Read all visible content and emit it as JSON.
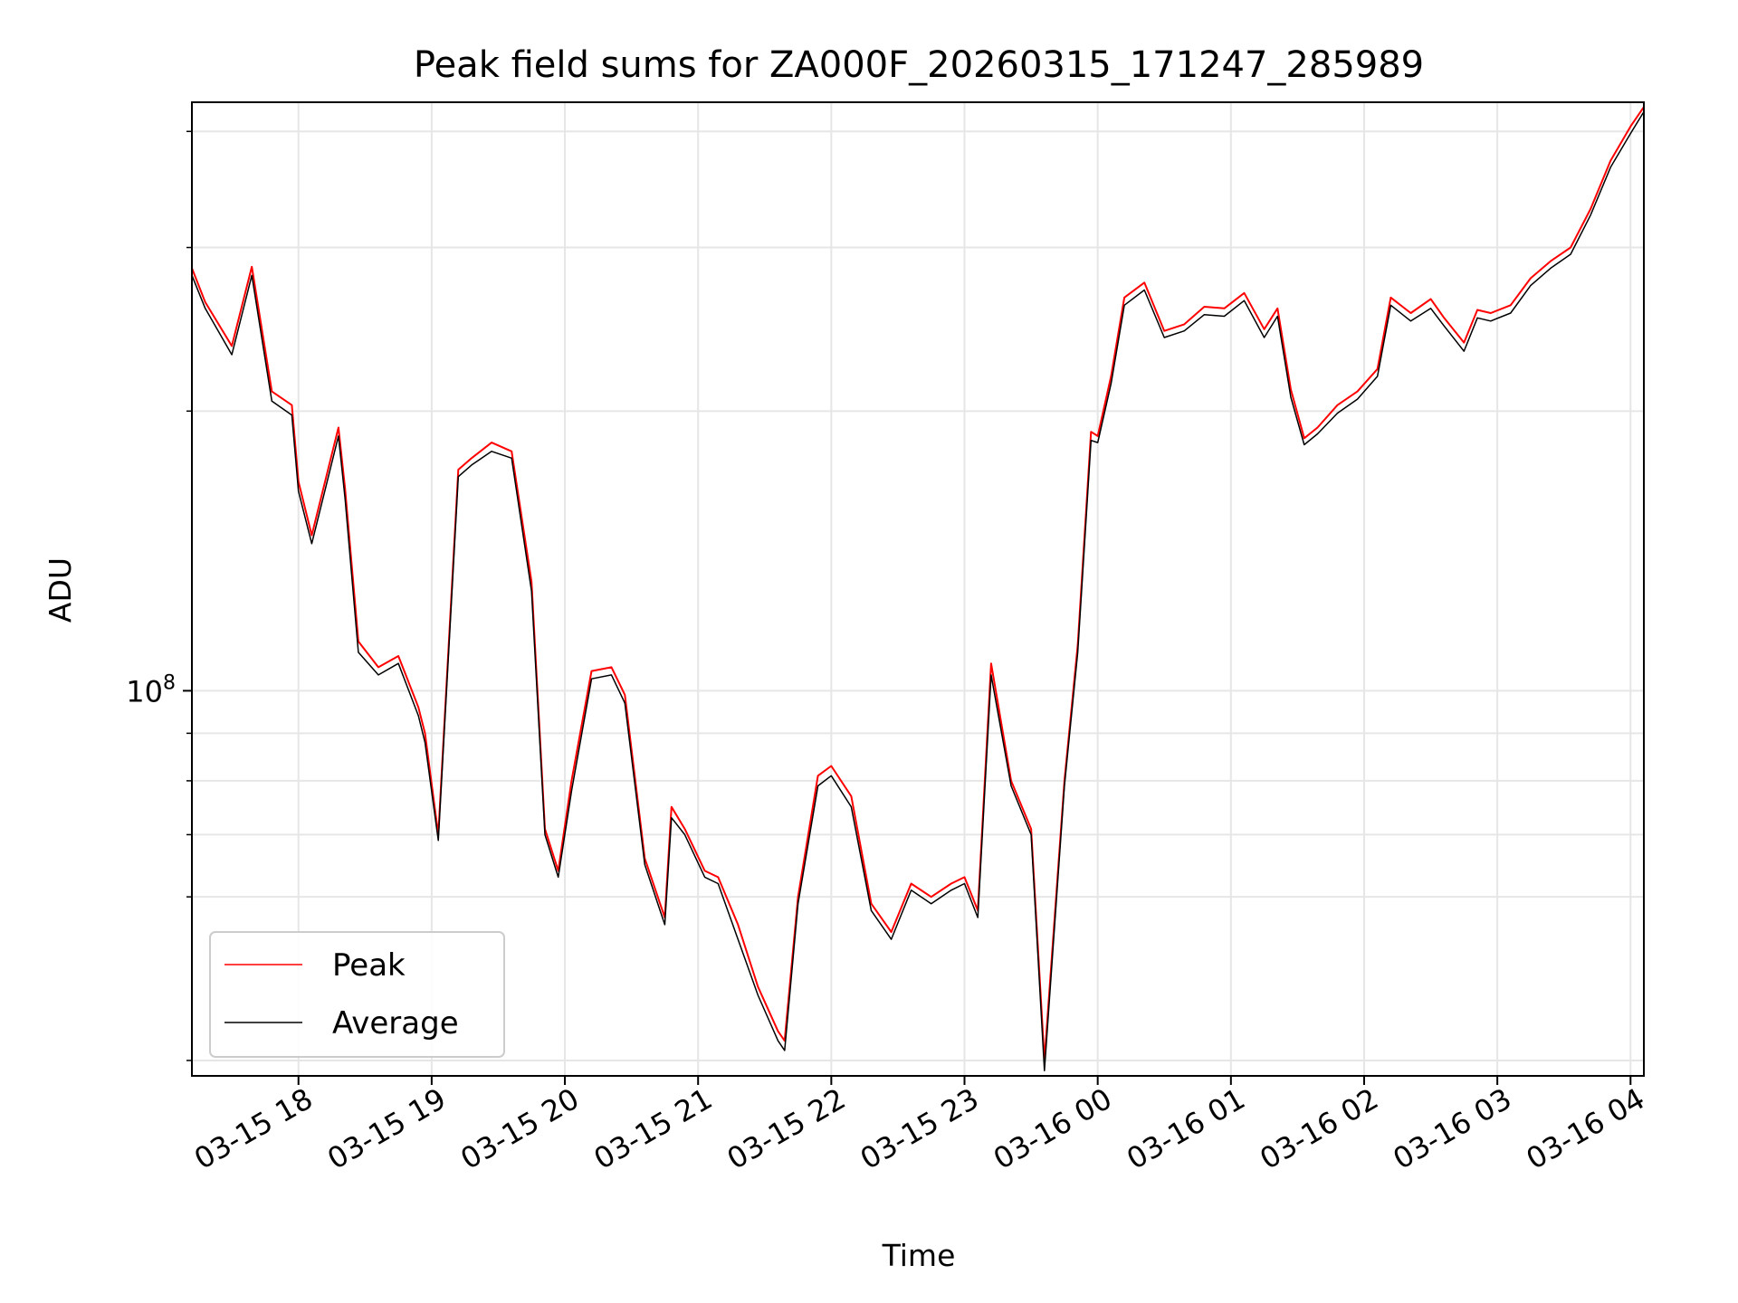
{
  "chart_data": {
    "type": "line",
    "title": "Peak field sums for ZA000F_20260315_171247_285989",
    "xlabel": "Time",
    "ylabel": "ADU",
    "y_scale": "log",
    "grid": true,
    "legend_position": "lower-left",
    "x_ticks": [
      "03-15 18",
      "03-15 19",
      "03-15 20",
      "03-15 21",
      "03-15 22",
      "03-15 23",
      "03-16 00",
      "03-16 01",
      "03-16 02",
      "03-16 03",
      "03-16 04"
    ],
    "y_ticks": [
      {
        "value": 100000000,
        "base": "10",
        "exp": "8"
      }
    ],
    "x_range": [
      "2026-03-15 17:12",
      "2026-03-16 04:05"
    ],
    "y_range": [
      38500000,
      430000000
    ],
    "x_hours_from_17": [
      0.2,
      0.3,
      0.5,
      0.65,
      0.8,
      0.95,
      1.0,
      1.1,
      1.3,
      1.35,
      1.45,
      1.6,
      1.75,
      1.9,
      1.95,
      2.05,
      2.2,
      2.3,
      2.45,
      2.6,
      2.75,
      2.85,
      2.95,
      3.05,
      3.2,
      3.35,
      3.45,
      3.6,
      3.75,
      3.8,
      3.9,
      4.05,
      4.15,
      4.3,
      4.45,
      4.6,
      4.65,
      4.75,
      4.9,
      5.0,
      5.15,
      5.3,
      5.45,
      5.6,
      5.75,
      5.9,
      6.0,
      6.1,
      6.2,
      6.35,
      6.5,
      6.6,
      6.75,
      6.85,
      6.95,
      7.0,
      7.1,
      7.2,
      7.35,
      7.5,
      7.65,
      7.8,
      7.95,
      8.1,
      8.25,
      8.35,
      8.45,
      8.55,
      8.65,
      8.8,
      8.95,
      9.1,
      9.2,
      9.35,
      9.5,
      9.6,
      9.75,
      9.85,
      9.95,
      10.1,
      10.25,
      10.4,
      10.55,
      10.7,
      10.85,
      11.0,
      11.1
    ],
    "series": [
      {
        "name": "Peak",
        "color": "#ff0000",
        "values": [
          285000000,
          262000000,
          235000000,
          286000000,
          210000000,
          203000000,
          168000000,
          147000000,
          192000000,
          165000000,
          113000000,
          106000000,
          109000000,
          96000000,
          90000000,
          70000000,
          173000000,
          178000000,
          185000000,
          181000000,
          131000000,
          71000000,
          64000000,
          80000000,
          105000000,
          106000000,
          99000000,
          66000000,
          57000000,
          75000000,
          71000000,
          64000000,
          63000000,
          56000000,
          48000000,
          43000000,
          42000000,
          60000000,
          81000000,
          83000000,
          77000000,
          59000000,
          55000000,
          62000000,
          60000000,
          62000000,
          63000000,
          58000000,
          107000000,
          80000000,
          71000000,
          40000000,
          80000000,
          112000000,
          190000000,
          188000000,
          218000000,
          265000000,
          275000000,
          244000000,
          248000000,
          259000000,
          258000000,
          268000000,
          245000000,
          258000000,
          211000000,
          187000000,
          192000000,
          203000000,
          210000000,
          222000000,
          265000000,
          255000000,
          264000000,
          252000000,
          237000000,
          257000000,
          255000000,
          260000000,
          278000000,
          290000000,
          300000000,
          330000000,
          372000000,
          405000000,
          425000000
        ]
      },
      {
        "name": "Average",
        "color": "#000000",
        "values": [
          280000000,
          258000000,
          230000000,
          280000000,
          205000000,
          198000000,
          164000000,
          144000000,
          188000000,
          161000000,
          110000000,
          104000000,
          107000000,
          94000000,
          88000000,
          69000000,
          170000000,
          175000000,
          181000000,
          178000000,
          128000000,
          70000000,
          63000000,
          78000000,
          103000000,
          104000000,
          97000000,
          65000000,
          56000000,
          73000000,
          70000000,
          63000000,
          62000000,
          54000000,
          47000000,
          42000000,
          41000000,
          59000000,
          79000000,
          81000000,
          75000000,
          58000000,
          54000000,
          61000000,
          59000000,
          61000000,
          62000000,
          57000000,
          104000000,
          79000000,
          70000000,
          39000000,
          79000000,
          110000000,
          186000000,
          185000000,
          214000000,
          260000000,
          270000000,
          240000000,
          244000000,
          254000000,
          253000000,
          263000000,
          240000000,
          253000000,
          207000000,
          184000000,
          189000000,
          199000000,
          206000000,
          218000000,
          260000000,
          250000000,
          258000000,
          247000000,
          232000000,
          252000000,
          250000000,
          255000000,
          273000000,
          285000000,
          295000000,
          325000000,
          366000000,
          398000000,
          420000000
        ]
      }
    ]
  }
}
